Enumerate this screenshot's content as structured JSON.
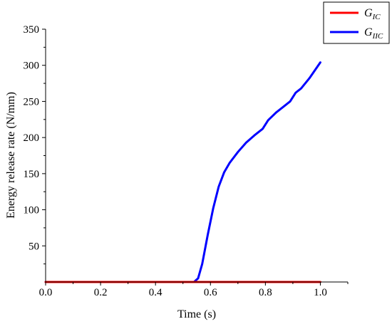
{
  "chart_data": {
    "type": "line",
    "title": "",
    "xlabel": "Time (s)",
    "ylabel": "Energy release rate (N/mm)",
    "xlim": [
      0,
      1.1
    ],
    "ylim": [
      0,
      350
    ],
    "x_ticks": [
      0.0,
      0.2,
      0.4,
      0.6,
      0.8,
      1.0
    ],
    "x_tick_labels": [
      "0.0",
      "0.2",
      "0.4",
      "0.6",
      "0.8",
      "1.0"
    ],
    "y_ticks": [
      50,
      100,
      150,
      200,
      250,
      300,
      350
    ],
    "y_tick_labels": [
      "50",
      "100",
      "150",
      "200",
      "250",
      "300",
      "350"
    ],
    "grid": false,
    "legend_position": "top-right",
    "series": [
      {
        "name": "G_IC",
        "label_main": "G",
        "label_sub": "IC",
        "color": "#ff0000",
        "x": [
          0.0,
          1.0
        ],
        "y": [
          0,
          0
        ]
      },
      {
        "name": "G_IIC",
        "label_main": "G",
        "label_sub": "IIC",
        "color": "#0000ff",
        "x": [
          0.0,
          0.54,
          0.555,
          0.57,
          0.59,
          0.61,
          0.63,
          0.65,
          0.67,
          0.7,
          0.73,
          0.76,
          0.79,
          0.81,
          0.84,
          0.87,
          0.89,
          0.91,
          0.93,
          0.96,
          1.0
        ],
        "y": [
          0,
          0,
          5,
          25,
          65,
          102,
          132,
          152,
          165,
          180,
          193,
          203,
          212,
          224,
          235,
          244,
          250,
          262,
          268,
          282,
          304
        ]
      }
    ]
  }
}
